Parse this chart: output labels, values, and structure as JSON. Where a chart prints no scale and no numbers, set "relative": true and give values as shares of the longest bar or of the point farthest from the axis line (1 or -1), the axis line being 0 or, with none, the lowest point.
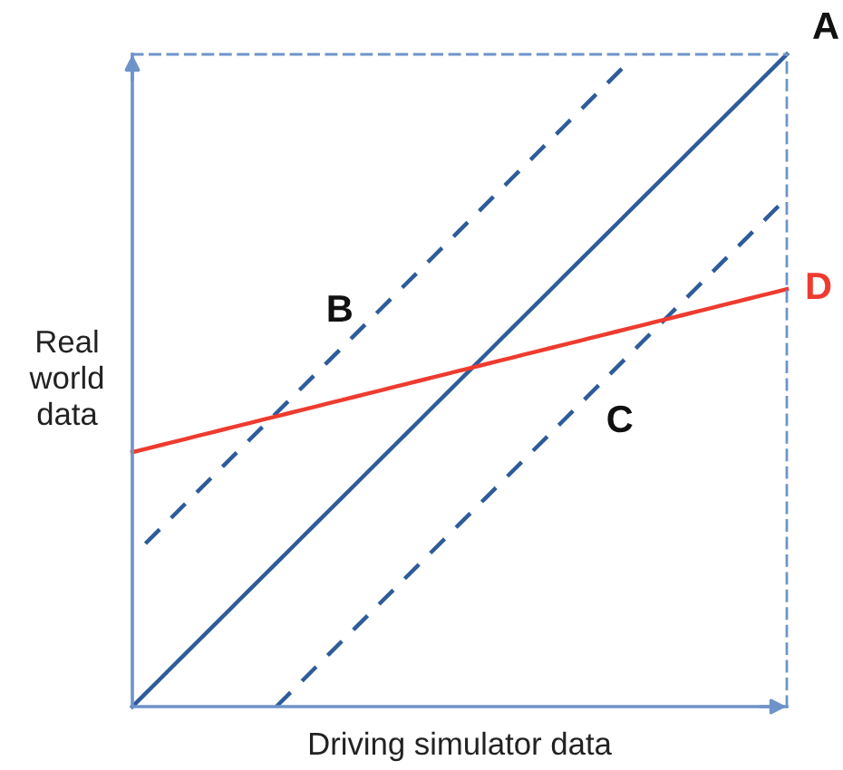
{
  "chart_data": {
    "type": "line",
    "relative": true,
    "xlabel": "Driving simulator data",
    "ylabel": "Real world data",
    "categories": [
      null,
      null,
      null,
      null,
      null,
      null,
      null,
      null,
      null,
      null,
      null,
      null,
      null,
      null,
      null,
      null,
      null,
      null,
      null,
      null,
      null,
      null,
      null,
      null,
      null,
      null,
      null,
      null,
      null,
      null,
      null,
      null,
      null,
      null,
      null,
      null,
      null,
      null,
      null,
      null,
      null,
      null,
      null,
      null,
      null,
      null,
      null,
      null,
      null,
      null,
      null
    ],
    "series": [
      {
        "name": "A",
        "color": "#2e5c9a",
        "line_style": "solid",
        "values": [
          0,
          0.02,
          0.04,
          0.06,
          0.08,
          0.1,
          0.12,
          0.14,
          0.16,
          0.18,
          0.2,
          0.22,
          0.24,
          0.26,
          0.28,
          0.3,
          0.32,
          0.34,
          0.36,
          0.38,
          0.4,
          0.42,
          0.44,
          0.46,
          0.48,
          0.5,
          0.52,
          0.54,
          0.56,
          0.58,
          0.6,
          0.62,
          0.64,
          0.66,
          0.68,
          0.7,
          0.72,
          0.74,
          0.76,
          0.78,
          0.8,
          0.82,
          0.84,
          0.86,
          0.88,
          0.9,
          0.92,
          0.94,
          0.96,
          0.98,
          1
        ]
      },
      {
        "name": "B",
        "color": "#2e5c9a",
        "line_style": "dashed",
        "values": [
          null,
          0.25,
          0.27,
          0.29,
          0.31,
          0.33,
          0.35,
          0.37,
          0.39,
          0.41,
          0.43,
          0.45,
          0.47,
          0.49,
          0.51,
          0.53,
          0.55,
          0.57,
          0.59,
          0.61,
          0.63,
          0.65,
          0.67,
          0.69,
          0.71,
          0.73,
          0.75,
          0.77,
          0.79,
          0.81,
          0.83,
          0.85,
          0.87,
          0.89,
          0.91,
          0.93,
          0.95,
          0.97,
          0.99,
          null,
          null,
          null,
          null,
          null,
          null,
          null,
          null,
          null,
          null,
          null,
          null
        ]
      },
      {
        "name": "C",
        "color": "#2e5c9a",
        "line_style": "dashed",
        "values": [
          null,
          null,
          null,
          null,
          null,
          null,
          null,
          null,
          null,
          null,
          null,
          0,
          0.02,
          0.04,
          0.06,
          0.08,
          0.1,
          0.12,
          0.14,
          0.16,
          0.18,
          0.2,
          0.22,
          0.24,
          0.26,
          0.28,
          0.3,
          0.32,
          0.34,
          0.36,
          0.38,
          0.4,
          0.42,
          0.44,
          0.46,
          0.48,
          0.5,
          0.52,
          0.54,
          0.56,
          0.58,
          0.6,
          0.62,
          0.64,
          0.66,
          0.68,
          0.7,
          0.72,
          0.74,
          0.76,
          0.78
        ]
      },
      {
        "name": "D",
        "color": "#ee3b2f",
        "line_style": "solid",
        "values": [
          0.39,
          0.395,
          0.4,
          0.405,
          0.41,
          0.415,
          0.42,
          0.425,
          0.43,
          0.435,
          0.44,
          0.445,
          0.45,
          0.455,
          0.46,
          0.465,
          0.47,
          0.475,
          0.48,
          0.485,
          0.49,
          0.495,
          0.5,
          0.505,
          0.51,
          0.515,
          0.52,
          0.525,
          0.53,
          0.535,
          0.54,
          0.545,
          0.55,
          0.555,
          0.56,
          0.565,
          0.57,
          0.575,
          0.58,
          0.585,
          0.59,
          0.595,
          0.6,
          0.605,
          0.61,
          0.615,
          0.62,
          0.625,
          0.63,
          0.635,
          0.64
        ]
      }
    ]
  }
}
